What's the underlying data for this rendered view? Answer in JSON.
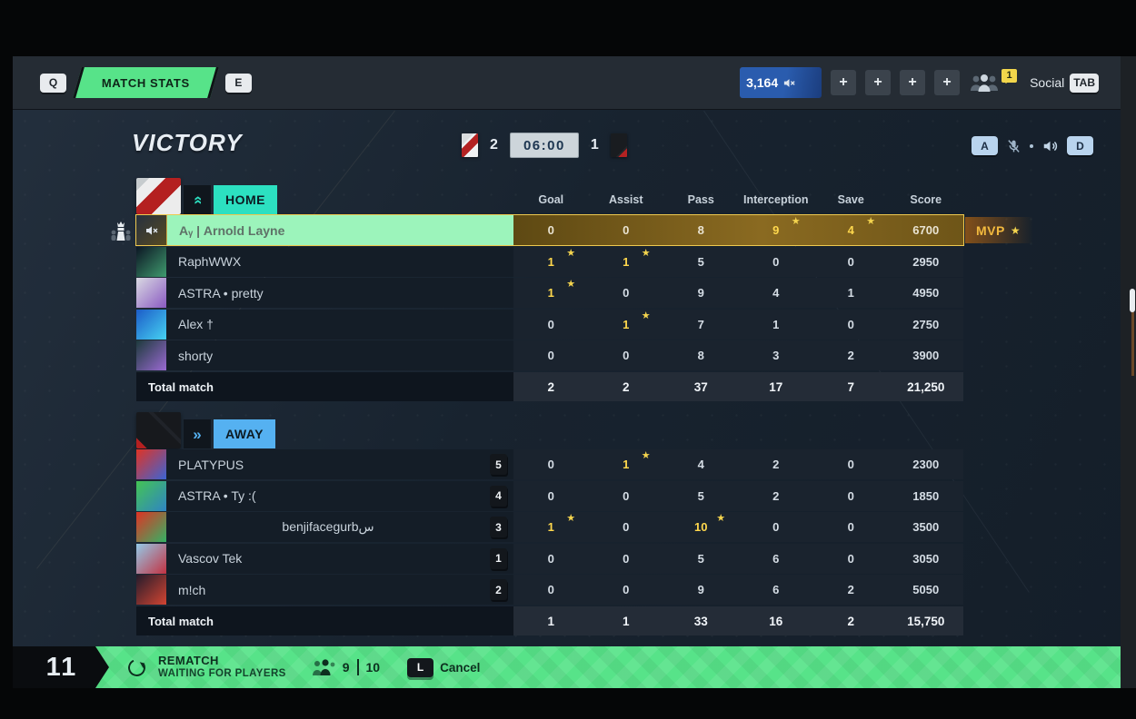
{
  "top_bar": {
    "left_key": "Q",
    "tab_label": "MATCH STATS",
    "right_key": "E",
    "currency": "3,164",
    "plus_buttons": [
      "+",
      "+",
      "+",
      "+"
    ],
    "social_badge": "1",
    "social_label": "Social",
    "social_key": "TAB"
  },
  "header": {
    "title": "VICTORY",
    "home_score": "2",
    "time": "06:00",
    "away_score": "1",
    "voice_key": "A",
    "sound_key": "D"
  },
  "table": {
    "columns": [
      "Goal",
      "Assist",
      "Pass",
      "Interception",
      "Save",
      "Score"
    ],
    "mvp_label": "MVP",
    "home": {
      "label": "HOME",
      "players": [
        {
          "name": "Aᵧ | Arnold Layne",
          "muted": true,
          "mvp": true,
          "avatar": [
            "#27313f",
            "#574a22"
          ],
          "stats": [
            {
              "v": "0"
            },
            {
              "v": "0"
            },
            {
              "v": "8"
            },
            {
              "v": "9",
              "star": true
            },
            {
              "v": "4",
              "star": true
            },
            {
              "v": "6700"
            }
          ]
        },
        {
          "name": "RaphWWX",
          "avatar": [
            "#0c1624",
            "#3f9a6e"
          ],
          "stats": [
            {
              "v": "1",
              "star": true
            },
            {
              "v": "1",
              "star": true
            },
            {
              "v": "5"
            },
            {
              "v": "0"
            },
            {
              "v": "0"
            },
            {
              "v": "2950"
            }
          ]
        },
        {
          "name": "ASTRA • pretty",
          "avatar": [
            "#d9d9e2",
            "#8a5ac2"
          ],
          "stats": [
            {
              "v": "1",
              "star": true
            },
            {
              "v": "0"
            },
            {
              "v": "9"
            },
            {
              "v": "4"
            },
            {
              "v": "1"
            },
            {
              "v": "4950"
            }
          ]
        },
        {
          "name": "Alex †",
          "avatar": [
            "#1c5cc8",
            "#46d2f2"
          ],
          "stats": [
            {
              "v": "0"
            },
            {
              "v": "1",
              "star": true
            },
            {
              "v": "7"
            },
            {
              "v": "1"
            },
            {
              "v": "0"
            },
            {
              "v": "2750"
            }
          ]
        },
        {
          "name": "shorty",
          "avatar": [
            "#1d3a3c",
            "#9a6ad2"
          ],
          "stats": [
            {
              "v": "0"
            },
            {
              "v": "0"
            },
            {
              "v": "8"
            },
            {
              "v": "3"
            },
            {
              "v": "2"
            },
            {
              "v": "3900"
            }
          ]
        }
      ],
      "total_label": "Total match",
      "totals": [
        "2",
        "2",
        "37",
        "17",
        "7",
        "21,250"
      ]
    },
    "away": {
      "label": "AWAY",
      "players": [
        {
          "name": "PLATYPUS",
          "badge": "5",
          "avatar": [
            "#e03324",
            "#3c64d4"
          ],
          "stats": [
            {
              "v": "0"
            },
            {
              "v": "1",
              "star": true
            },
            {
              "v": "4"
            },
            {
              "v": "2"
            },
            {
              "v": "0"
            },
            {
              "v": "2300"
            }
          ]
        },
        {
          "name": "ASTRA • Ty :(",
          "badge": "4",
          "avatar": [
            "#44c454",
            "#2f84c4"
          ],
          "stats": [
            {
              "v": "0"
            },
            {
              "v": "0"
            },
            {
              "v": "5"
            },
            {
              "v": "2"
            },
            {
              "v": "0"
            },
            {
              "v": "1850"
            }
          ]
        },
        {
          "name": "benjifacegurbس",
          "badge": "3",
          "centered": true,
          "avatar": [
            "#e03324",
            "#34b264"
          ],
          "stats": [
            {
              "v": "1",
              "star": true
            },
            {
              "v": "0"
            },
            {
              "v": "10",
              "star": true
            },
            {
              "v": "0"
            },
            {
              "v": "0"
            },
            {
              "v": "3500"
            }
          ]
        },
        {
          "name": "Vascov Tek",
          "badge": "1",
          "avatar": [
            "#94cae8",
            "#c23242"
          ],
          "stats": [
            {
              "v": "0"
            },
            {
              "v": "0"
            },
            {
              "v": "5"
            },
            {
              "v": "6"
            },
            {
              "v": "0"
            },
            {
              "v": "3050"
            }
          ]
        },
        {
          "name": "m!ch",
          "badge": "2",
          "avatar": [
            "#241c2c",
            "#d24432"
          ],
          "stats": [
            {
              "v": "0"
            },
            {
              "v": "0"
            },
            {
              "v": "9"
            },
            {
              "v": "6"
            },
            {
              "v": "2"
            },
            {
              "v": "5050"
            }
          ]
        }
      ],
      "total_label": "Total match",
      "totals": [
        "1",
        "1",
        "33",
        "16",
        "2",
        "15,750"
      ]
    }
  },
  "bottom_bar": {
    "counter": "11",
    "title": "REMATCH",
    "subtitle": "WAITING FOR PLAYERS",
    "players_current": "9",
    "players_max": "10",
    "cancel_key": "L",
    "cancel_label": "Cancel"
  },
  "colors": {
    "green": "#57e389",
    "lightgreen": "#9cf4bb",
    "teal": "#2ce0c1",
    "blue": "#55b1f1",
    "gold": "#eec94f",
    "yellow": "#ffd84d"
  }
}
